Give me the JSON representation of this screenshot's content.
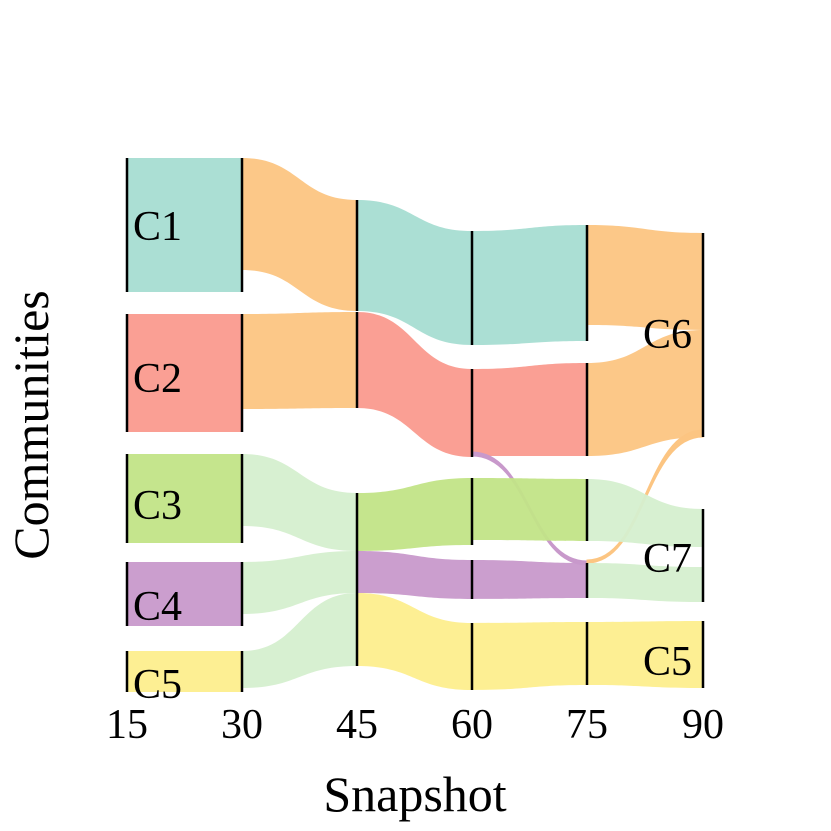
{
  "chart_data": {
    "type": "alluvial",
    "xlabel": "Snapshot",
    "ylabel": "Communities",
    "x": [
      15,
      30,
      45,
      60,
      75,
      90
    ],
    "colors": {
      "C1": "#a6ddd2",
      "C2": "#fa9a8e",
      "C3": "#c2e487",
      "C4": "#c899cb",
      "C5": "#fdee8d",
      "C6": "#fcc582",
      "C7": "#d5efcf"
    },
    "labels": [
      {
        "text": "C1",
        "snapshot": 15,
        "community": "C1"
      },
      {
        "text": "C2",
        "snapshot": 15,
        "community": "C2"
      },
      {
        "text": "C3",
        "snapshot": 15,
        "community": "C3"
      },
      {
        "text": "C4",
        "snapshot": 15,
        "community": "C4"
      },
      {
        "text": "C5",
        "snapshot": 15,
        "community": "C5"
      },
      {
        "text": "C6",
        "snapshot": 90,
        "community": "C6"
      },
      {
        "text": "C7",
        "snapshot": 90,
        "community": "C7"
      },
      {
        "text": "C5",
        "snapshot": 90,
        "community": "C5"
      }
    ],
    "nodes": {
      "15": [
        {
          "community": "C1",
          "size": 135
        },
        {
          "community": "C2",
          "size": 120
        },
        {
          "community": "C3",
          "size": 90
        },
        {
          "community": "C4",
          "size": 65
        },
        {
          "community": "C5",
          "size": 42
        }
      ],
      "30": [
        {
          "community": "C1",
          "size": 135
        },
        {
          "community": "C2",
          "size": 120
        },
        {
          "community": "C3",
          "size": 90
        },
        {
          "community": "C4",
          "size": 65
        },
        {
          "community": "C5",
          "size": 42
        }
      ],
      "45": [
        {
          "community": "C1",
          "size": 110
        },
        {
          "community": "C2",
          "size": 95
        },
        {
          "community": "C3",
          "size": 57
        },
        {
          "community": "C4",
          "size": 42
        },
        {
          "community": "C5",
          "size": 72
        }
      ],
      "60": [
        {
          "community": "C1",
          "size": 115
        },
        {
          "community": "C2",
          "size": 88
        },
        {
          "community": "C3",
          "size": 67
        },
        {
          "community": "C4",
          "size": 42
        },
        {
          "community": "C5",
          "size": 68
        }
      ],
      "75": [
        {
          "community": "C1",
          "size": 115
        },
        {
          "community": "C2",
          "size": 92
        },
        {
          "community": "C3",
          "size": 62
        },
        {
          "community": "C4",
          "size": 36
        },
        {
          "community": "C5",
          "size": 62
        }
      ],
      "90": [
        {
          "community": "C6",
          "size": 203
        },
        {
          "community": "C7",
          "size": 93
        },
        {
          "community": "C5",
          "size": 63
        }
      ]
    },
    "flows": [
      {
        "from_snapshot": 15,
        "to_snapshot": 30,
        "from": "C1",
        "to": "C1",
        "value": 135
      },
      {
        "from_snapshot": 15,
        "to_snapshot": 30,
        "from": "C2",
        "to": "C2",
        "value": 120
      },
      {
        "from_snapshot": 15,
        "to_snapshot": 30,
        "from": "C3",
        "to": "C3",
        "value": 90
      },
      {
        "from_snapshot": 15,
        "to_snapshot": 30,
        "from": "C4",
        "to": "C4",
        "value": 65
      },
      {
        "from_snapshot": 15,
        "to_snapshot": 30,
        "from": "C5",
        "to": "C5",
        "value": 42
      },
      {
        "from_snapshot": 30,
        "to_snapshot": 45,
        "from": "C1",
        "to": "C1",
        "value": 110,
        "color_key": "C6"
      },
      {
        "from_snapshot": 30,
        "to_snapshot": 45,
        "from": "C2",
        "to": "C2",
        "value": 95,
        "color_key": "C6"
      },
      {
        "from_snapshot": 30,
        "to_snapshot": 45,
        "from": "C3",
        "to": "C3",
        "value": 57,
        "color_key": "C7"
      },
      {
        "from_snapshot": 30,
        "to_snapshot": 45,
        "from": "C4",
        "to": "C4",
        "value": 42,
        "color_key": "C7"
      },
      {
        "from_snapshot": 30,
        "to_snapshot": 45,
        "from": "C5",
        "to": "C5",
        "value": 42,
        "color_key": "C7"
      },
      {
        "from_snapshot": 45,
        "to_snapshot": 60,
        "from": "C1",
        "to": "C1",
        "value": 110
      },
      {
        "from_snapshot": 45,
        "to_snapshot": 60,
        "from": "C2",
        "to": "C2",
        "value": 88
      },
      {
        "from_snapshot": 45,
        "to_snapshot": 60,
        "from": "C3",
        "to": "C3",
        "value": 57
      },
      {
        "from_snapshot": 45,
        "to_snapshot": 60,
        "from": "C4",
        "to": "C4",
        "value": 42
      },
      {
        "from_snapshot": 45,
        "to_snapshot": 60,
        "from": "C5",
        "to": "C5",
        "value": 68
      },
      {
        "from_snapshot": 60,
        "to_snapshot": 75,
        "from": "C1",
        "to": "C1",
        "value": 115
      },
      {
        "from_snapshot": 60,
        "to_snapshot": 75,
        "from": "C2",
        "to": "C2",
        "value": 88
      },
      {
        "from_snapshot": 60,
        "to_snapshot": 75,
        "from": "C2",
        "to": "C4",
        "value": 2,
        "color_key": "C4"
      },
      {
        "from_snapshot": 60,
        "to_snapshot": 75,
        "from": "C3",
        "to": "C3",
        "value": 62
      },
      {
        "from_snapshot": 60,
        "to_snapshot": 75,
        "from": "C4",
        "to": "C4",
        "value": 36
      },
      {
        "from_snapshot": 60,
        "to_snapshot": 75,
        "from": "C5",
        "to": "C5",
        "value": 68
      },
      {
        "from_snapshot": 75,
        "to_snapshot": 90,
        "from": "C1",
        "to": "C6",
        "value": 100,
        "color_key": "C6"
      },
      {
        "from_snapshot": 75,
        "to_snapshot": 90,
        "from": "C2",
        "to": "C6",
        "value": 92,
        "color_key": "C6"
      },
      {
        "from_snapshot": 75,
        "to_snapshot": 90,
        "from": "C4",
        "to": "C6",
        "value": 2,
        "color_key": "C6"
      },
      {
        "from_snapshot": 75,
        "to_snapshot": 90,
        "from": "C3",
        "to": "C7",
        "value": 55,
        "color_key": "C7"
      },
      {
        "from_snapshot": 75,
        "to_snapshot": 90,
        "from": "C4",
        "to": "C7",
        "value": 36,
        "color_key": "C7"
      },
      {
        "from_snapshot": 75,
        "to_snapshot": 90,
        "from": "C5",
        "to": "C5",
        "value": 62
      }
    ]
  }
}
